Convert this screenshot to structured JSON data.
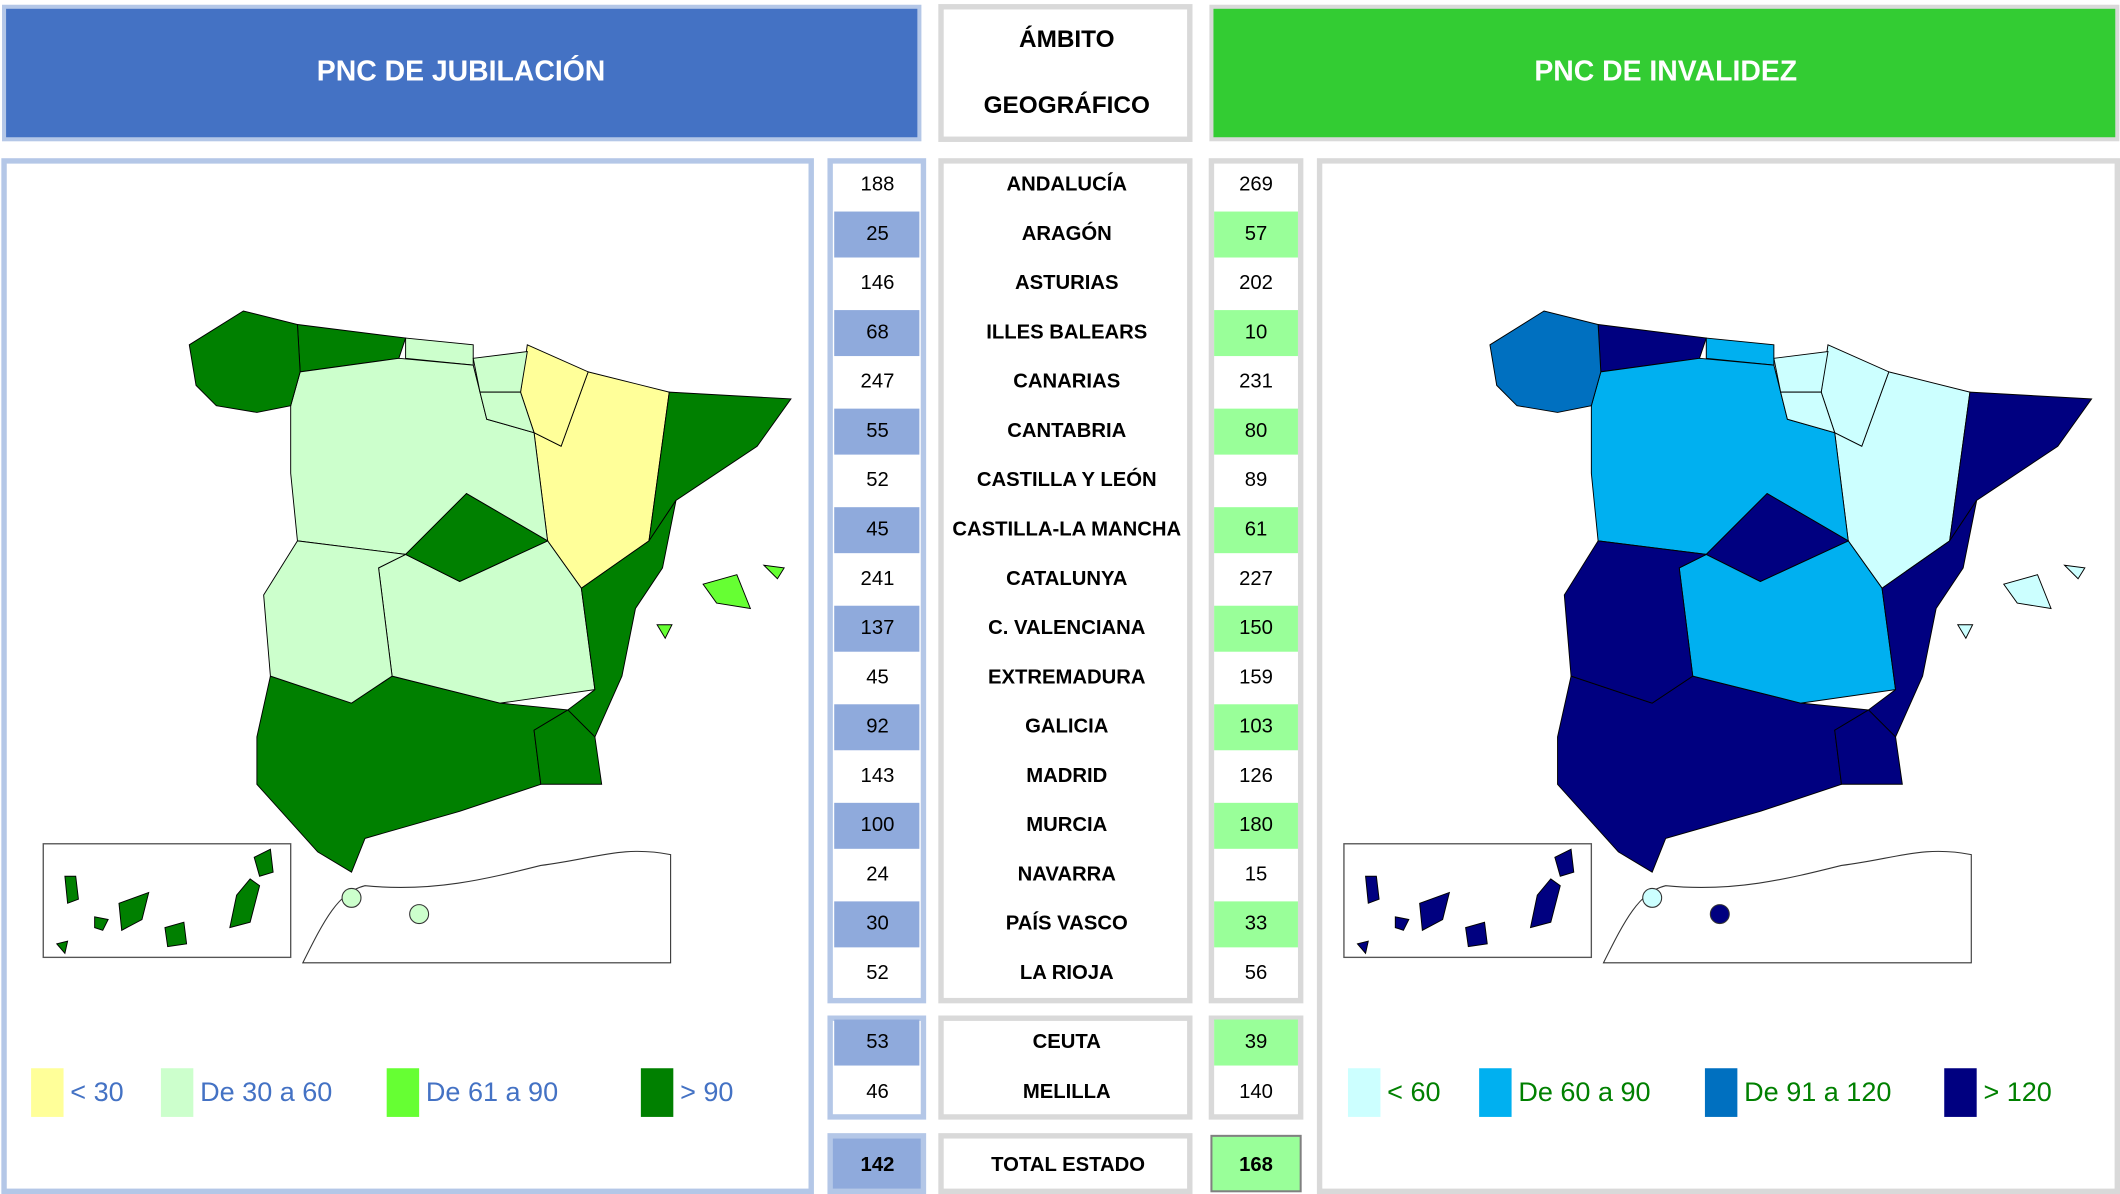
{
  "header": {
    "left_title": "PNC DE JUBILACIÓN",
    "middle_title": [
      "ÁMBITO",
      "GEOGRÁFICO"
    ],
    "right_title": "PNC DE INVALIDEZ"
  },
  "table": {
    "rows": [
      {
        "name": "ANDALUCÍA",
        "jubilacion": 188,
        "invalidez": 269
      },
      {
        "name": "ARAGÓN",
        "jubilacion": 25,
        "invalidez": 57
      },
      {
        "name": "ASTURIAS",
        "jubilacion": 146,
        "invalidez": 202
      },
      {
        "name": "ILLES BALEARS",
        "jubilacion": 68,
        "invalidez": 10
      },
      {
        "name": "CANARIAS",
        "jubilacion": 247,
        "invalidez": 231
      },
      {
        "name": "CANTABRIA",
        "jubilacion": 55,
        "invalidez": 80
      },
      {
        "name": "CASTILLA Y LEÓN",
        "jubilacion": 52,
        "invalidez": 89
      },
      {
        "name": "CASTILLA-LA MANCHA",
        "jubilacion": 45,
        "invalidez": 61
      },
      {
        "name": "CATALUNYA",
        "jubilacion": 241,
        "invalidez": 227
      },
      {
        "name": "C. VALENCIANA",
        "jubilacion": 137,
        "invalidez": 150
      },
      {
        "name": "EXTREMADURA",
        "jubilacion": 45,
        "invalidez": 159
      },
      {
        "name": "GALICIA",
        "jubilacion": 92,
        "invalidez": 103
      },
      {
        "name": "MADRID",
        "jubilacion": 143,
        "invalidez": 126
      },
      {
        "name": "MURCIA",
        "jubilacion": 100,
        "invalidez": 180
      },
      {
        "name": "NAVARRA",
        "jubilacion": 24,
        "invalidez": 15
      },
      {
        "name": "PAÍS VASCO",
        "jubilacion": 30,
        "invalidez": 33
      },
      {
        "name": "LA RIOJA",
        "jubilacion": 52,
        "invalidez": 56
      },
      {
        "name": "CEUTA",
        "jubilacion": 53,
        "invalidez": 39
      },
      {
        "name": "MELILLA",
        "jubilacion": 46,
        "invalidez": 140
      }
    ],
    "total": {
      "name": "TOTAL ESTADO",
      "jubilacion": 142,
      "invalidez": 168
    }
  },
  "legend_left": [
    {
      "label": "< 30",
      "color": "#ffff99"
    },
    {
      "label": "De 30 a 60",
      "color": "#ccffcc"
    },
    {
      "label": "De 61 a 90",
      "color": "#66ff33"
    },
    {
      "label": "> 90",
      "color": "#008000"
    }
  ],
  "legend_right": [
    {
      "label": "< 60",
      "color": "#ccffff"
    },
    {
      "label": "De 60 a 90",
      "color": "#00b0f0"
    },
    {
      "label": "De 91 a 120",
      "color": "#0070c0"
    },
    {
      "label": "> 120",
      "color": "#000080"
    }
  ]
}
